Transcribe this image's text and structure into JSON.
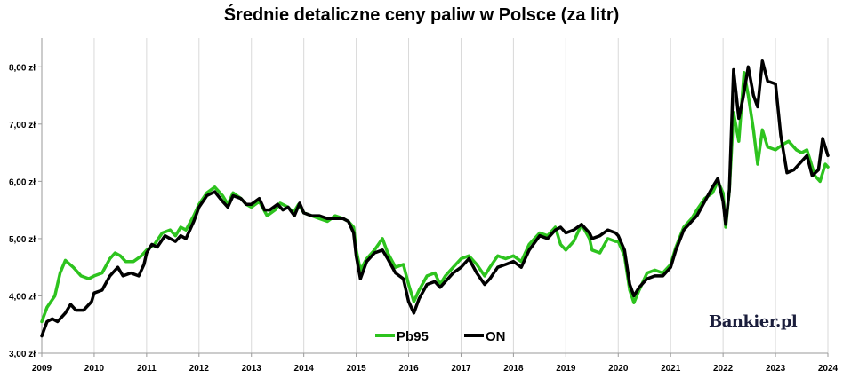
{
  "chart_data": {
    "type": "line",
    "title": "Średnie detaliczne ceny paliw w Polsce (za litr)",
    "xlabel": "",
    "ylabel": "",
    "xlim": [
      2009.0,
      2024.0
    ],
    "ylim": [
      3.0,
      8.5
    ],
    "x_ticks": [
      "2009",
      "2010",
      "2011",
      "2012",
      "2013",
      "2014",
      "2015",
      "2016",
      "2017",
      "2018",
      "2019",
      "2020",
      "2021",
      "2022",
      "2023",
      "2024"
    ],
    "y_ticks": [
      "3,00 zł",
      "4,00 zł",
      "5,00 zł",
      "6,00 zł",
      "7,00 zł",
      "8,00 zł"
    ],
    "y_tick_values": [
      3,
      4,
      5,
      6,
      7,
      8
    ],
    "grid": "vertical",
    "legend": "bottom-center",
    "series": [
      {
        "name": "Pb95",
        "color": "#2dc31e",
        "points": [
          [
            2009.0,
            3.55
          ],
          [
            2009.1,
            3.8
          ],
          [
            2009.25,
            4.0
          ],
          [
            2009.35,
            4.4
          ],
          [
            2009.45,
            4.62
          ],
          [
            2009.6,
            4.5
          ],
          [
            2009.75,
            4.35
          ],
          [
            2009.9,
            4.3
          ],
          [
            2010.0,
            4.35
          ],
          [
            2010.15,
            4.4
          ],
          [
            2010.3,
            4.65
          ],
          [
            2010.4,
            4.75
          ],
          [
            2010.5,
            4.7
          ],
          [
            2010.6,
            4.6
          ],
          [
            2010.75,
            4.6
          ],
          [
            2010.9,
            4.7
          ],
          [
            2011.0,
            4.8
          ],
          [
            2011.15,
            4.9
          ],
          [
            2011.3,
            5.1
          ],
          [
            2011.45,
            5.15
          ],
          [
            2011.55,
            5.05
          ],
          [
            2011.65,
            5.2
          ],
          [
            2011.75,
            5.15
          ],
          [
            2011.9,
            5.4
          ],
          [
            2012.0,
            5.6
          ],
          [
            2012.15,
            5.8
          ],
          [
            2012.3,
            5.9
          ],
          [
            2012.45,
            5.75
          ],
          [
            2012.55,
            5.6
          ],
          [
            2012.65,
            5.8
          ],
          [
            2012.8,
            5.7
          ],
          [
            2012.9,
            5.6
          ],
          [
            2013.0,
            5.55
          ],
          [
            2013.15,
            5.65
          ],
          [
            2013.3,
            5.4
          ],
          [
            2013.45,
            5.5
          ],
          [
            2013.55,
            5.62
          ],
          [
            2013.7,
            5.55
          ],
          [
            2013.8,
            5.45
          ],
          [
            2013.9,
            5.6
          ],
          [
            2014.0,
            5.45
          ],
          [
            2014.15,
            5.4
          ],
          [
            2014.3,
            5.35
          ],
          [
            2014.45,
            5.3
          ],
          [
            2014.6,
            5.4
          ],
          [
            2014.75,
            5.35
          ],
          [
            2014.85,
            5.3
          ],
          [
            2014.95,
            5.2
          ],
          [
            2015.0,
            4.8
          ],
          [
            2015.08,
            4.45
          ],
          [
            2015.2,
            4.65
          ],
          [
            2015.35,
            4.8
          ],
          [
            2015.5,
            5.0
          ],
          [
            2015.6,
            4.75
          ],
          [
            2015.75,
            4.5
          ],
          [
            2015.9,
            4.55
          ],
          [
            2016.0,
            4.2
          ],
          [
            2016.1,
            3.9
          ],
          [
            2016.2,
            4.1
          ],
          [
            2016.35,
            4.35
          ],
          [
            2016.5,
            4.4
          ],
          [
            2016.6,
            4.2
          ],
          [
            2016.7,
            4.35
          ],
          [
            2016.85,
            4.5
          ],
          [
            2017.0,
            4.65
          ],
          [
            2017.15,
            4.7
          ],
          [
            2017.3,
            4.55
          ],
          [
            2017.45,
            4.35
          ],
          [
            2017.55,
            4.5
          ],
          [
            2017.7,
            4.7
          ],
          [
            2017.85,
            4.65
          ],
          [
            2018.0,
            4.7
          ],
          [
            2018.15,
            4.6
          ],
          [
            2018.3,
            4.9
          ],
          [
            2018.5,
            5.1
          ],
          [
            2018.65,
            5.05
          ],
          [
            2018.8,
            5.2
          ],
          [
            2018.9,
            4.9
          ],
          [
            2019.0,
            4.8
          ],
          [
            2019.15,
            4.95
          ],
          [
            2019.3,
            5.25
          ],
          [
            2019.45,
            5.0
          ],
          [
            2019.5,
            4.8
          ],
          [
            2019.65,
            4.75
          ],
          [
            2019.8,
            5.0
          ],
          [
            2019.95,
            4.95
          ],
          [
            2020.0,
            4.95
          ],
          [
            2020.12,
            4.7
          ],
          [
            2020.22,
            4.1
          ],
          [
            2020.3,
            3.88
          ],
          [
            2020.4,
            4.1
          ],
          [
            2020.55,
            4.4
          ],
          [
            2020.7,
            4.45
          ],
          [
            2020.85,
            4.4
          ],
          [
            2021.0,
            4.55
          ],
          [
            2021.1,
            4.85
          ],
          [
            2021.25,
            5.2
          ],
          [
            2021.4,
            5.35
          ],
          [
            2021.5,
            5.5
          ],
          [
            2021.65,
            5.7
          ],
          [
            2021.8,
            5.8
          ],
          [
            2021.9,
            6.0
          ],
          [
            2022.0,
            5.8
          ],
          [
            2022.05,
            5.2
          ],
          [
            2022.12,
            5.85
          ],
          [
            2022.2,
            7.2
          ],
          [
            2022.3,
            6.7
          ],
          [
            2022.4,
            7.9
          ],
          [
            2022.48,
            7.5
          ],
          [
            2022.58,
            6.9
          ],
          [
            2022.66,
            6.3
          ],
          [
            2022.75,
            6.9
          ],
          [
            2022.85,
            6.6
          ],
          [
            2023.0,
            6.55
          ],
          [
            2023.15,
            6.65
          ],
          [
            2023.25,
            6.7
          ],
          [
            2023.4,
            6.55
          ],
          [
            2023.5,
            6.5
          ],
          [
            2023.6,
            6.55
          ],
          [
            2023.65,
            6.4
          ],
          [
            2023.75,
            6.1
          ],
          [
            2023.85,
            6.0
          ],
          [
            2023.95,
            6.3
          ],
          [
            2024.0,
            6.25
          ]
        ]
      },
      {
        "name": "ON",
        "color": "#000000",
        "points": [
          [
            2009.0,
            3.3
          ],
          [
            2009.1,
            3.55
          ],
          [
            2009.2,
            3.6
          ],
          [
            2009.3,
            3.55
          ],
          [
            2009.45,
            3.7
          ],
          [
            2009.55,
            3.85
          ],
          [
            2009.65,
            3.75
          ],
          [
            2009.8,
            3.75
          ],
          [
            2009.95,
            3.9
          ],
          [
            2010.0,
            4.05
          ],
          [
            2010.15,
            4.1
          ],
          [
            2010.3,
            4.35
          ],
          [
            2010.45,
            4.5
          ],
          [
            2010.55,
            4.35
          ],
          [
            2010.7,
            4.4
          ],
          [
            2010.85,
            4.35
          ],
          [
            2010.95,
            4.55
          ],
          [
            2011.0,
            4.75
          ],
          [
            2011.1,
            4.9
          ],
          [
            2011.2,
            4.85
          ],
          [
            2011.35,
            5.05
          ],
          [
            2011.45,
            5.0
          ],
          [
            2011.55,
            4.95
          ],
          [
            2011.65,
            5.05
          ],
          [
            2011.75,
            5.0
          ],
          [
            2011.9,
            5.3
          ],
          [
            2012.0,
            5.55
          ],
          [
            2012.15,
            5.75
          ],
          [
            2012.3,
            5.82
          ],
          [
            2012.45,
            5.65
          ],
          [
            2012.55,
            5.55
          ],
          [
            2012.65,
            5.75
          ],
          [
            2012.8,
            5.7
          ],
          [
            2012.9,
            5.6
          ],
          [
            2013.0,
            5.6
          ],
          [
            2013.15,
            5.7
          ],
          [
            2013.25,
            5.5
          ],
          [
            2013.35,
            5.5
          ],
          [
            2013.5,
            5.6
          ],
          [
            2013.6,
            5.5
          ],
          [
            2013.7,
            5.55
          ],
          [
            2013.82,
            5.4
          ],
          [
            2013.92,
            5.62
          ],
          [
            2014.0,
            5.45
          ],
          [
            2014.15,
            5.4
          ],
          [
            2014.3,
            5.4
          ],
          [
            2014.45,
            5.35
          ],
          [
            2014.6,
            5.35
          ],
          [
            2014.75,
            5.35
          ],
          [
            2014.85,
            5.3
          ],
          [
            2014.95,
            5.1
          ],
          [
            2015.0,
            4.7
          ],
          [
            2015.08,
            4.3
          ],
          [
            2015.2,
            4.6
          ],
          [
            2015.35,
            4.75
          ],
          [
            2015.5,
            4.8
          ],
          [
            2015.6,
            4.65
          ],
          [
            2015.75,
            4.4
          ],
          [
            2015.9,
            4.3
          ],
          [
            2016.0,
            3.9
          ],
          [
            2016.1,
            3.7
          ],
          [
            2016.2,
            3.95
          ],
          [
            2016.35,
            4.2
          ],
          [
            2016.5,
            4.25
          ],
          [
            2016.6,
            4.15
          ],
          [
            2016.7,
            4.25
          ],
          [
            2016.85,
            4.4
          ],
          [
            2017.0,
            4.5
          ],
          [
            2017.15,
            4.65
          ],
          [
            2017.3,
            4.4
          ],
          [
            2017.45,
            4.2
          ],
          [
            2017.55,
            4.3
          ],
          [
            2017.7,
            4.5
          ],
          [
            2017.85,
            4.55
          ],
          [
            2018.0,
            4.6
          ],
          [
            2018.15,
            4.5
          ],
          [
            2018.3,
            4.8
          ],
          [
            2018.5,
            5.05
          ],
          [
            2018.65,
            5.0
          ],
          [
            2018.8,
            5.15
          ],
          [
            2018.9,
            5.2
          ],
          [
            2019.0,
            5.1
          ],
          [
            2019.15,
            5.15
          ],
          [
            2019.3,
            5.25
          ],
          [
            2019.45,
            5.1
          ],
          [
            2019.5,
            5.0
          ],
          [
            2019.65,
            5.05
          ],
          [
            2019.8,
            5.15
          ],
          [
            2019.95,
            5.1
          ],
          [
            2020.0,
            5.05
          ],
          [
            2020.12,
            4.8
          ],
          [
            2020.22,
            4.2
          ],
          [
            2020.3,
            4.0
          ],
          [
            2020.4,
            4.15
          ],
          [
            2020.55,
            4.3
          ],
          [
            2020.7,
            4.35
          ],
          [
            2020.85,
            4.35
          ],
          [
            2021.0,
            4.5
          ],
          [
            2021.1,
            4.8
          ],
          [
            2021.25,
            5.15
          ],
          [
            2021.4,
            5.3
          ],
          [
            2021.5,
            5.4
          ],
          [
            2021.65,
            5.65
          ],
          [
            2021.8,
            5.9
          ],
          [
            2021.9,
            6.05
          ],
          [
            2022.0,
            5.65
          ],
          [
            2022.05,
            5.25
          ],
          [
            2022.12,
            5.85
          ],
          [
            2022.2,
            7.95
          ],
          [
            2022.3,
            7.1
          ],
          [
            2022.38,
            7.45
          ],
          [
            2022.48,
            8.0
          ],
          [
            2022.58,
            7.5
          ],
          [
            2022.66,
            7.3
          ],
          [
            2022.75,
            8.1
          ],
          [
            2022.85,
            7.75
          ],
          [
            2023.0,
            7.7
          ],
          [
            2023.1,
            6.8
          ],
          [
            2023.22,
            6.15
          ],
          [
            2023.35,
            6.2
          ],
          [
            2023.5,
            6.35
          ],
          [
            2023.6,
            6.45
          ],
          [
            2023.7,
            6.1
          ],
          [
            2023.82,
            6.2
          ],
          [
            2023.9,
            6.75
          ],
          [
            2024.0,
            6.45
          ]
        ]
      }
    ]
  },
  "watermark": "Bankier.pl"
}
